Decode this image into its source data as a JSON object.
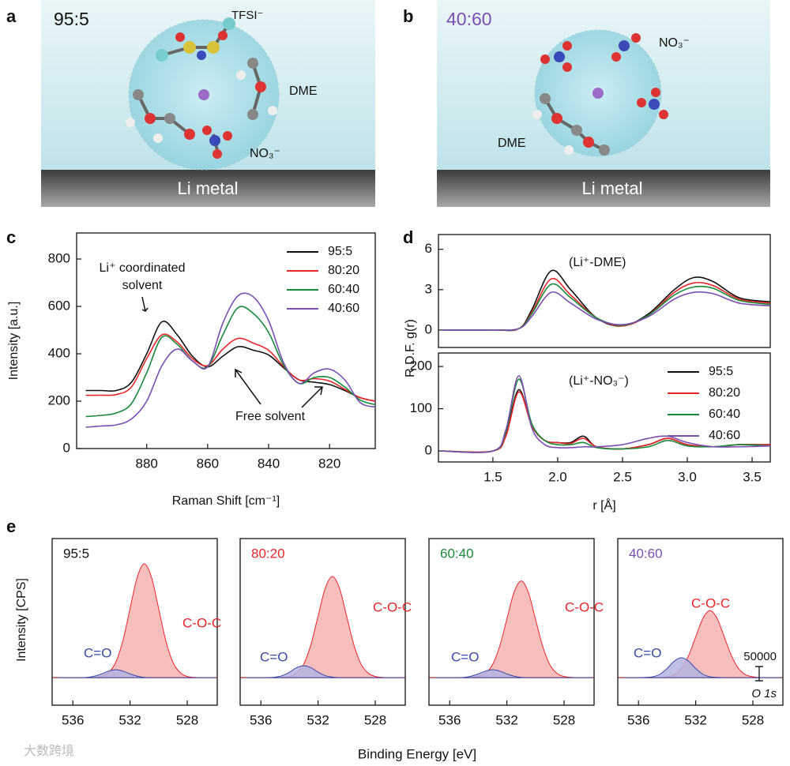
{
  "panel_labels": [
    "a",
    "b",
    "c",
    "d",
    "e"
  ],
  "watermark": "大数跨境",
  "illustrations": [
    {
      "ratio": "95:5",
      "anion_label": "TFSI⁻",
      "solvent_label": "DME",
      "nitrate_label": "NO₃⁻",
      "substrate": "Li metal"
    },
    {
      "ratio": "40:60",
      "nitrate_label": "NO₃⁻",
      "solvent_label": "DME",
      "substrate": "Li metal"
    }
  ],
  "chart_data": [
    {
      "type": "line",
      "xlabel": "Raman Shift [cm⁻¹]",
      "ylabel": "Intensity [a.u.]",
      "x": [
        900,
        895,
        890,
        885,
        880,
        875,
        870,
        865,
        860,
        855,
        850,
        845,
        840,
        835,
        830,
        825,
        820,
        815,
        810,
        805
      ],
      "xlim": [
        903,
        805
      ],
      "ylim": [
        0,
        910
      ],
      "xticks": [
        880,
        860,
        840,
        820
      ],
      "yticks": [
        0,
        200,
        400,
        600,
        800
      ],
      "legend": "upper right",
      "annotations": [
        "Li⁺ coordinated",
        "solvent",
        "Free solvent"
      ],
      "series": [
        {
          "name": "95:5",
          "color": "#111111",
          "values": [
            245,
            245,
            245,
            280,
            400,
            535,
            480,
            390,
            345,
            390,
            430,
            415,
            395,
            340,
            290,
            280,
            270,
            245,
            215,
            200
          ]
        },
        {
          "name": "80:20",
          "color": "#e8262a",
          "values": [
            225,
            225,
            228,
            260,
            380,
            480,
            450,
            380,
            350,
            420,
            465,
            445,
            415,
            345,
            290,
            295,
            285,
            250,
            215,
            200
          ]
        },
        {
          "name": "60:40",
          "color": "#1a8a3a",
          "values": [
            135,
            140,
            150,
            190,
            320,
            470,
            440,
            370,
            345,
            480,
            595,
            570,
            490,
            350,
            275,
            300,
            300,
            260,
            205,
            185
          ]
        },
        {
          "name": "40:60",
          "color": "#7b4fb0",
          "values": [
            90,
            95,
            100,
            125,
            200,
            350,
            420,
            370,
            345,
            530,
            645,
            640,
            540,
            360,
            275,
            320,
            335,
            290,
            195,
            175
          ]
        }
      ]
    },
    {
      "type": "line",
      "ylabel": "R.D.F. g(r)",
      "annotation": "(Li⁺-DME)",
      "x": [
        1.1,
        1.5,
        1.7,
        1.8,
        1.95,
        2.1,
        2.3,
        2.5,
        2.7,
        2.9,
        3.05,
        3.2,
        3.4,
        3.64
      ],
      "xlim": [
        1.08,
        3.64
      ],
      "ylim": [
        -1.3,
        7.1
      ],
      "yticks": [
        0,
        3,
        6
      ],
      "series": [
        {
          "color": "#111111",
          "values": [
            0,
            0,
            0.1,
            1.5,
            4.4,
            3.0,
            0.9,
            0.3,
            1.2,
            3.0,
            3.9,
            3.6,
            2.4,
            2.1
          ]
        },
        {
          "color": "#e8262a",
          "values": [
            0,
            0,
            0.1,
            1.3,
            3.8,
            2.6,
            0.9,
            0.3,
            1.1,
            2.8,
            3.5,
            3.3,
            2.3,
            2.0
          ]
        },
        {
          "color": "#1a8a3a",
          "values": [
            0,
            0,
            0.1,
            1.2,
            3.4,
            2.4,
            0.9,
            0.35,
            1.1,
            2.6,
            3.2,
            3.1,
            2.2,
            1.9
          ]
        },
        {
          "color": "#7b4fb0",
          "values": [
            0,
            0,
            0.1,
            1.0,
            2.8,
            2.0,
            0.8,
            0.4,
            1.0,
            2.3,
            2.8,
            2.7,
            2.0,
            1.8
          ]
        }
      ]
    },
    {
      "type": "line",
      "xlabel": "r [Å]",
      "annotation": "(Li⁺-NO₃⁻)",
      "legend": "upper right",
      "x": [
        1.1,
        1.5,
        1.6,
        1.7,
        1.8,
        1.9,
        2.0,
        2.1,
        2.2,
        2.3,
        2.5,
        2.7,
        2.85,
        3.0,
        3.2,
        3.4,
        3.64
      ],
      "xlim": [
        1.08,
        3.64
      ],
      "ylim": [
        -26,
        232
      ],
      "yticks": [
        0,
        100,
        200
      ],
      "xticks": [
        1.5,
        {
          "value": 2,
          "label": "2.0"
        },
        2.5,
        {
          "value": 3,
          "label": "3.0"
        },
        3.5
      ],
      "series": [
        {
          "name": "95:5",
          "color": "#111111",
          "values": [
            0,
            0,
            40,
            145,
            60,
            25,
            20,
            20,
            35,
            10,
            5,
            15,
            30,
            15,
            10,
            15,
            15
          ]
        },
        {
          "name": "80:20",
          "color": "#e8262a",
          "values": [
            0,
            0,
            35,
            140,
            60,
            25,
            20,
            18,
            30,
            10,
            5,
            15,
            30,
            15,
            10,
            15,
            15
          ]
        },
        {
          "name": "60:40",
          "color": "#1a8a3a",
          "values": [
            0,
            0,
            45,
            170,
            65,
            25,
            15,
            15,
            20,
            8,
            5,
            10,
            25,
            12,
            10,
            15,
            12
          ]
        },
        {
          "name": "40:60",
          "color": "#7b4fb0",
          "values": [
            0,
            0,
            50,
            178,
            55,
            15,
            8,
            8,
            10,
            10,
            15,
            30,
            35,
            20,
            10,
            10,
            12
          ]
        }
      ]
    },
    {
      "type": "area",
      "label": "95:5",
      "label_color": "#111111",
      "ylabel": "Intensity [CPS]",
      "xlabel": "Binding Energy [eV]",
      "x": [
        537,
        536.5,
        536,
        535.5,
        535,
        534.5,
        534,
        533.5,
        533,
        532.5,
        532,
        531.5,
        531,
        530.5,
        530,
        529.5,
        529,
        528.5,
        528,
        527.5,
        527,
        526.5,
        526
      ],
      "xlim": [
        537.45,
        525.9
      ],
      "ylim": [
        -97000,
        489000
      ],
      "xticks": [
        536,
        532,
        528
      ],
      "series": [
        {
          "name": "C-O-C",
          "color": "#e8262a",
          "fill": "#f6b3b3",
          "values": [
            0,
            0,
            0,
            0,
            0,
            1000,
            4000,
            18000,
            54000,
            130000,
            243000,
            353000,
            400000,
            353000,
            243000,
            130000,
            54000,
            18000,
            4000,
            1000,
            0,
            0,
            0
          ]
        },
        {
          "name": "C=O",
          "color": "#3a4aa8",
          "fill": "#b4b4e2",
          "values": [
            0,
            0,
            0,
            0,
            1000,
            5000,
            13000,
            23000,
            28000,
            23000,
            13000,
            5000,
            1000,
            0,
            0,
            0,
            0,
            0,
            0,
            0,
            0,
            0,
            0
          ]
        }
      ]
    },
    {
      "type": "area",
      "label": "80:20",
      "label_color": "#e8262a",
      "x": [
        537,
        536.5,
        536,
        535.5,
        535,
        534.5,
        534,
        533.5,
        533,
        532.5,
        532,
        531.5,
        531,
        530.5,
        530,
        529.5,
        529,
        528.5,
        528,
        527.5,
        527,
        526.5,
        526
      ],
      "xlim": [
        537.45,
        525.9
      ],
      "ylim": [
        -97000,
        489000
      ],
      "xticks": [
        536,
        532,
        528
      ],
      "series": [
        {
          "name": "C-O-C",
          "color": "#e8262a",
          "fill": "#f6b3b3",
          "values": [
            0,
            0,
            0,
            0,
            0,
            1000,
            4000,
            16000,
            48000,
            116000,
            216000,
            314000,
            356000,
            314000,
            216000,
            116000,
            48000,
            16000,
            4000,
            1000,
            0,
            0,
            0
          ]
        },
        {
          "name": "C=O",
          "color": "#3a4aa8",
          "fill": "#b4b4e2",
          "values": [
            0,
            0,
            0,
            0,
            2000,
            7000,
            19000,
            35000,
            42000,
            35000,
            19000,
            7000,
            2000,
            0,
            0,
            0,
            0,
            0,
            0,
            0,
            0,
            0,
            0
          ]
        }
      ]
    },
    {
      "type": "area",
      "label": "60:40",
      "label_color": "#1a8a3a",
      "x": [
        537,
        536.5,
        536,
        535.5,
        535,
        534.5,
        534,
        533.5,
        533,
        532.5,
        532,
        531.5,
        531,
        530.5,
        530,
        529.5,
        529,
        528.5,
        528,
        527.5,
        527,
        526.5,
        526
      ],
      "xlim": [
        537.45,
        525.9
      ],
      "ylim": [
        -97000,
        489000
      ],
      "xticks": [
        536,
        532,
        528
      ],
      "series": [
        {
          "name": "C-O-C",
          "color": "#e8262a",
          "fill": "#f6b3b3",
          "values": [
            0,
            0,
            0,
            0,
            0,
            1000,
            4000,
            15000,
            46000,
            111000,
            206000,
            300000,
            340000,
            300000,
            206000,
            111000,
            46000,
            15000,
            4000,
            1000,
            0,
            0,
            0
          ]
        },
        {
          "name": "C=O",
          "color": "#3a4aa8",
          "fill": "#b4b4e2",
          "values": [
            0,
            0,
            0,
            0,
            1000,
            5000,
            13000,
            23000,
            28000,
            23000,
            13000,
            5000,
            1000,
            0,
            0,
            0,
            0,
            0,
            0,
            0,
            0,
            0,
            0
          ]
        }
      ]
    },
    {
      "type": "area",
      "label": "40:60",
      "label_color": "#7b4fb0",
      "scale_bar": 50000,
      "annotation": "O 1s",
      "x": [
        537,
        536.5,
        536,
        535.5,
        535,
        534.5,
        534,
        533.5,
        533,
        532.5,
        532,
        531.5,
        531,
        530.5,
        530,
        529.5,
        529,
        528.5,
        528,
        527.5,
        527,
        526.5,
        526
      ],
      "xlim": [
        537.45,
        525.9
      ],
      "ylim": [
        -97000,
        489000
      ],
      "xticks": [
        536,
        532,
        528
      ],
      "series": [
        {
          "name": "C-O-C",
          "color": "#e8262a",
          "fill": "#f6b3b3",
          "values": [
            0,
            0,
            0,
            0,
            0,
            0,
            3000,
            10000,
            32000,
            77000,
            143000,
            208000,
            236000,
            208000,
            143000,
            77000,
            32000,
            10000,
            3000,
            0,
            0,
            0,
            0
          ]
        },
        {
          "name": "C=O",
          "color": "#3a4aa8",
          "fill": "#b4b4e2",
          "values": [
            0,
            0,
            0,
            1000,
            3000,
            12000,
            32000,
            58000,
            70000,
            58000,
            32000,
            12000,
            3000,
            1000,
            0,
            0,
            0,
            0,
            0,
            0,
            0,
            0,
            0
          ]
        }
      ]
    }
  ]
}
